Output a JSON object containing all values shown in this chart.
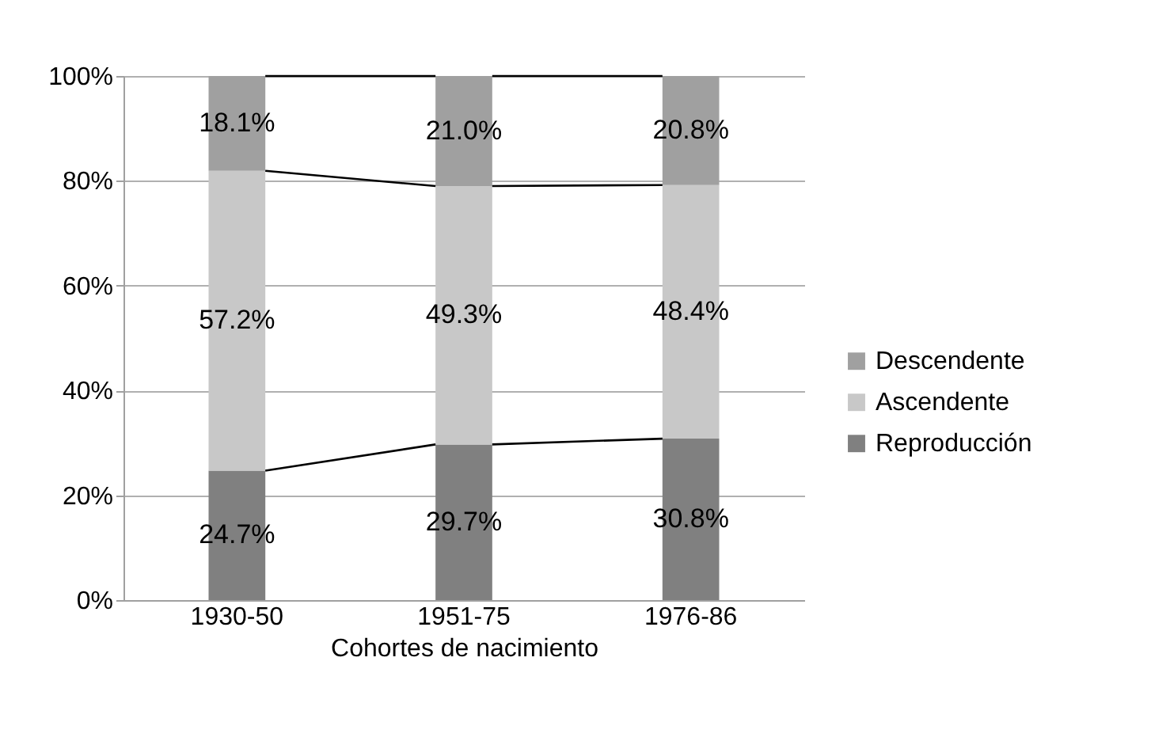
{
  "chart_data": {
    "type": "bar",
    "stacked": true,
    "xlabel": "Cohortes de nacimiento",
    "categories": [
      "1930-50",
      "1951-75",
      "1976-86"
    ],
    "series": [
      {
        "name": "Reproducción",
        "color": "#808080",
        "values": [
          24.7,
          29.7,
          30.8
        ],
        "value_labels": [
          "24.7%",
          "29.7%",
          "30.8%"
        ]
      },
      {
        "name": "Ascendente",
        "color": "#c8c8c8",
        "values": [
          57.2,
          49.3,
          48.4
        ],
        "value_labels": [
          "57.2%",
          "49.3%",
          "48.4%"
        ]
      },
      {
        "name": "Descendente",
        "color": "#a0a0a0",
        "values": [
          18.1,
          21.0,
          20.8
        ],
        "value_labels": [
          "18.1%",
          "21.0%",
          "20.8%"
        ]
      }
    ],
    "ylim": [
      0,
      100
    ],
    "yticks": [
      {
        "value": 0,
        "label": "0%"
      },
      {
        "value": 20,
        "label": "20%"
      },
      {
        "value": 40,
        "label": "40%"
      },
      {
        "value": 60,
        "label": "60%"
      },
      {
        "value": 80,
        "label": "80%"
      },
      {
        "value": 100,
        "label": "100%"
      }
    ],
    "grid": "y",
    "legend": "right"
  }
}
